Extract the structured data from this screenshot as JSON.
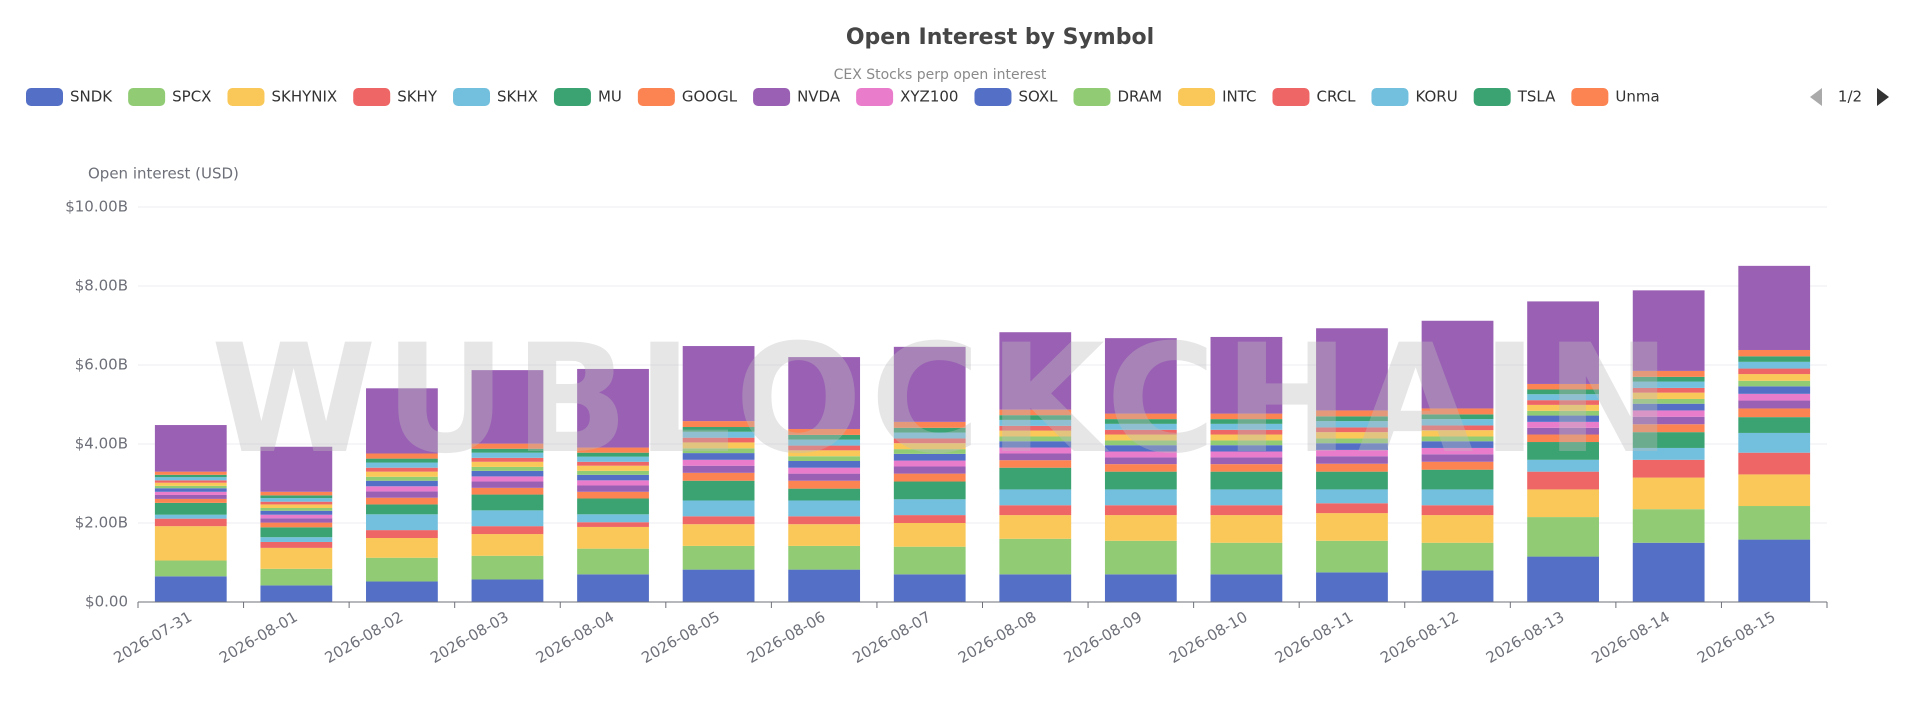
{
  "chart_data": {
    "type": "stacked_bar",
    "title": "Open Interest by Symbol",
    "subtitle": "CEX Stocks perp open interest",
    "y_axis_title": "Open interest (USD)",
    "watermark": "WUBLOCKCHAIN",
    "legend_page": "1/2",
    "grid": true,
    "categories": [
      "2026-07-31",
      "2026-08-01",
      "2026-08-02",
      "2026-08-03",
      "2026-08-04",
      "2026-08-05",
      "2026-08-06",
      "2026-08-07",
      "2026-08-08",
      "2026-08-09",
      "2026-08-10",
      "2026-08-11",
      "2026-08-12",
      "2026-08-13",
      "2026-08-14",
      "2026-08-15"
    ],
    "ylim": [
      0,
      10
    ],
    "yticks": [
      {
        "value": 0,
        "label": "$0.00"
      },
      {
        "value": 2,
        "label": "$2.00B"
      },
      {
        "value": 4,
        "label": "$4.00B"
      },
      {
        "value": 6,
        "label": "$6.00B"
      },
      {
        "value": 8,
        "label": "$8.00B"
      },
      {
        "value": 10,
        "label": "$10.00B"
      }
    ],
    "series": [
      {
        "name": "SNDK",
        "color": "#5470c6",
        "values": [
          0.65,
          0.42,
          0.52,
          0.57,
          0.7,
          0.82,
          0.82,
          0.7,
          0.7,
          0.7,
          0.7,
          0.75,
          0.8,
          1.15,
          1.5,
          1.58
        ]
      },
      {
        "name": "SPCX",
        "color": "#91cc75",
        "values": [
          0.4,
          0.42,
          0.6,
          0.6,
          0.65,
          0.6,
          0.6,
          0.7,
          0.9,
          0.85,
          0.8,
          0.8,
          0.7,
          1.0,
          0.85,
          0.85
        ]
      },
      {
        "name": "SKHYNIX",
        "color": "#fac858",
        "values": [
          0.87,
          0.53,
          0.5,
          0.55,
          0.55,
          0.55,
          0.55,
          0.6,
          0.6,
          0.65,
          0.7,
          0.7,
          0.7,
          0.7,
          0.8,
          0.8
        ]
      },
      {
        "name": "SKHY",
        "color": "#ee6666",
        "values": [
          0.19,
          0.15,
          0.2,
          0.2,
          0.12,
          0.2,
          0.2,
          0.2,
          0.25,
          0.25,
          0.25,
          0.25,
          0.25,
          0.45,
          0.45,
          0.55
        ]
      },
      {
        "name": "SKHX",
        "color": "#73c0de",
        "values": [
          0.1,
          0.12,
          0.4,
          0.4,
          0.2,
          0.4,
          0.4,
          0.4,
          0.4,
          0.4,
          0.4,
          0.35,
          0.4,
          0.3,
          0.3,
          0.5
        ]
      },
      {
        "name": "MU",
        "color": "#3ba272",
        "values": [
          0.3,
          0.25,
          0.25,
          0.4,
          0.4,
          0.5,
          0.3,
          0.45,
          0.55,
          0.45,
          0.45,
          0.45,
          0.5,
          0.45,
          0.4,
          0.4
        ]
      },
      {
        "name": "GOOGL",
        "color": "#fc8452",
        "values": [
          0.1,
          0.12,
          0.17,
          0.17,
          0.17,
          0.2,
          0.2,
          0.2,
          0.19,
          0.19,
          0.19,
          0.2,
          0.2,
          0.19,
          0.2,
          0.22
        ]
      },
      {
        "name": "NVDA",
        "color": "#9a60b4",
        "values": [
          0.1,
          0.11,
          0.16,
          0.16,
          0.16,
          0.18,
          0.18,
          0.18,
          0.17,
          0.17,
          0.17,
          0.19,
          0.19,
          0.17,
          0.19,
          0.2
        ]
      },
      {
        "name": "XYZ100",
        "color": "#ea7ccc",
        "values": [
          0.08,
          0.09,
          0.13,
          0.13,
          0.13,
          0.15,
          0.15,
          0.15,
          0.15,
          0.15,
          0.15,
          0.16,
          0.16,
          0.15,
          0.16,
          0.17
        ]
      },
      {
        "name": "SOXL",
        "color": "#5470c6",
        "values": [
          0.09,
          0.1,
          0.14,
          0.14,
          0.14,
          0.17,
          0.17,
          0.17,
          0.16,
          0.16,
          0.16,
          0.17,
          0.17,
          0.16,
          0.17,
          0.19
        ]
      },
      {
        "name": "DRAM",
        "color": "#91cc75",
        "values": [
          0.06,
          0.07,
          0.1,
          0.1,
          0.1,
          0.12,
          0.12,
          0.12,
          0.12,
          0.12,
          0.12,
          0.12,
          0.12,
          0.12,
          0.12,
          0.14
        ]
      },
      {
        "name": "INTC",
        "color": "#fac858",
        "values": [
          0.08,
          0.09,
          0.13,
          0.13,
          0.13,
          0.15,
          0.15,
          0.15,
          0.15,
          0.15,
          0.15,
          0.16,
          0.16,
          0.15,
          0.16,
          0.17
        ]
      },
      {
        "name": "CRCL",
        "color": "#ee6666",
        "values": [
          0.06,
          0.07,
          0.1,
          0.1,
          0.1,
          0.12,
          0.12,
          0.12,
          0.12,
          0.12,
          0.12,
          0.12,
          0.12,
          0.12,
          0.12,
          0.14
        ]
      },
      {
        "name": "KORU",
        "color": "#73c0de",
        "values": [
          0.08,
          0.09,
          0.13,
          0.13,
          0.13,
          0.15,
          0.15,
          0.15,
          0.15,
          0.15,
          0.15,
          0.16,
          0.16,
          0.15,
          0.16,
          0.17
        ]
      },
      {
        "name": "TSLA",
        "color": "#3ba272",
        "values": [
          0.06,
          0.07,
          0.1,
          0.1,
          0.1,
          0.12,
          0.12,
          0.12,
          0.12,
          0.12,
          0.12,
          0.12,
          0.12,
          0.12,
          0.12,
          0.14
        ]
      },
      {
        "name": "Unma",
        "color": "#fc8452",
        "values": [
          0.08,
          0.09,
          0.13,
          0.13,
          0.13,
          0.15,
          0.15,
          0.15,
          0.14,
          0.14,
          0.14,
          0.15,
          0.15,
          0.14,
          0.15,
          0.16
        ]
      },
      {
        "name": null,
        "color": "#9a60b4",
        "values": [
          1.18,
          1.14,
          1.65,
          1.86,
          1.99,
          1.9,
          1.82,
          1.9,
          1.96,
          1.91,
          1.94,
          2.08,
          2.22,
          2.09,
          2.04,
          2.13
        ]
      }
    ]
  }
}
